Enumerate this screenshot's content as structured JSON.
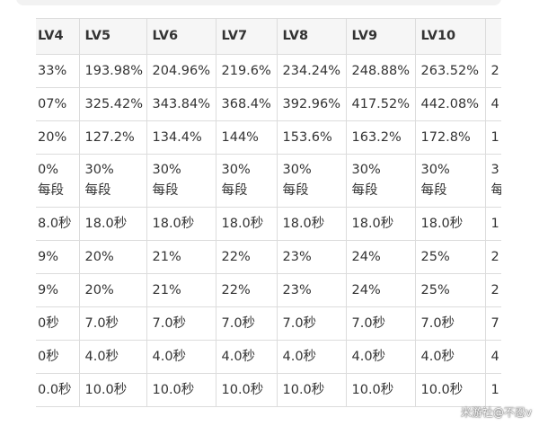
{
  "table": {
    "header": [
      "LV4",
      "LV5",
      "LV6",
      "LV7",
      "LV8",
      "LV9",
      "LV10",
      ""
    ],
    "rows": [
      [
        "33%",
        "193.98%",
        "204.96%",
        "219.6%",
        "234.24%",
        "248.88%",
        "263.52%",
        "2"
      ],
      [
        "07%",
        "325.42%",
        "343.84%",
        "368.4%",
        "392.96%",
        "417.52%",
        "442.08%",
        "4"
      ],
      [
        "20%",
        "127.2%",
        "134.4%",
        "144%",
        "153.6%",
        "163.2%",
        "172.8%",
        "1"
      ],
      [
        "0%\n每段",
        "30%\n每段",
        "30%\n每段",
        "30%\n每段",
        "30%\n每段",
        "30%\n每段",
        "30%\n每段",
        "3\n每"
      ],
      [
        "8.0秒",
        "18.0秒",
        "18.0秒",
        "18.0秒",
        "18.0秒",
        "18.0秒",
        "18.0秒",
        "1"
      ],
      [
        "9%",
        "20%",
        "21%",
        "22%",
        "23%",
        "24%",
        "25%",
        "2"
      ],
      [
        "9%",
        "20%",
        "21%",
        "22%",
        "23%",
        "24%",
        "25%",
        "2"
      ],
      [
        "0秒",
        "7.0秒",
        "7.0秒",
        "7.0秒",
        "7.0秒",
        "7.0秒",
        "7.0秒",
        "7"
      ],
      [
        "0秒",
        "4.0秒",
        "4.0秒",
        "4.0秒",
        "4.0秒",
        "4.0秒",
        "4.0秒",
        "4"
      ],
      [
        "0.0秒",
        "10.0秒",
        "10.0秒",
        "10.0秒",
        "10.0秒",
        "10.0秒",
        "10.0秒",
        "1"
      ]
    ]
  },
  "watermark": "米游社@不忍v"
}
